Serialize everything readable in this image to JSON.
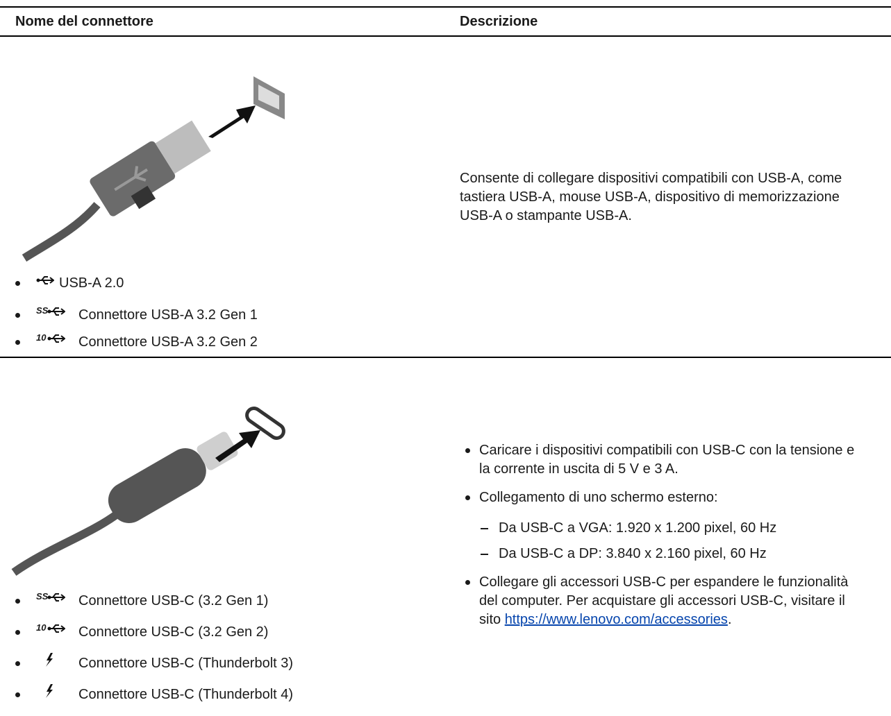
{
  "table": {
    "headers": [
      "Nome del connettore",
      "Descrizione"
    ],
    "rows": [
      {
        "connectors": [
          {
            "label": "USB-A 2.0"
          },
          {
            "icon_text": "SS",
            "label": "Connettore USB-A 3.2 Gen 1"
          },
          {
            "icon_text": "10",
            "label": "Connettore USB-A 3.2 Gen 2"
          }
        ],
        "description": "Consente di collegare dispositivi compatibili con USB-A, come tastiera USB-A, mouse USB-A, dispositivo di memorizzazione USB-A o stampante USB-A."
      },
      {
        "connectors": [
          {
            "icon_text": "SS",
            "label": "Connettore USB-C (3.2 Gen 1)"
          },
          {
            "icon_text": "10",
            "label": "Connettore USB-C (3.2 Gen 2)"
          },
          {
            "label": "Connettore USB-C (Thunderbolt 3)"
          },
          {
            "label": "Connettore USB-C (Thunderbolt 4)"
          }
        ],
        "description": {
          "items": [
            {
              "text": "Caricare i dispositivi compatibili con USB-C con la tensione e la corrente in uscita di 5 V e 3 A."
            },
            {
              "text": "Collegamento di uno schermo esterno:",
              "subitems": [
                "Da USB-C a VGA: 1.920 x 1.200 pixel, 60 Hz",
                "Da USB-C a DP: 3.840 x 2.160 pixel, 60 Hz"
              ]
            },
            {
              "text": "Collegare gli accessori USB-C per espandere le funzionalità del computer. Per acquistare gli accessori USB-C, visitare il sito ",
              "link": "https://www.lenovo.com/accessories",
              "text_after": "."
            }
          ]
        }
      }
    ]
  }
}
